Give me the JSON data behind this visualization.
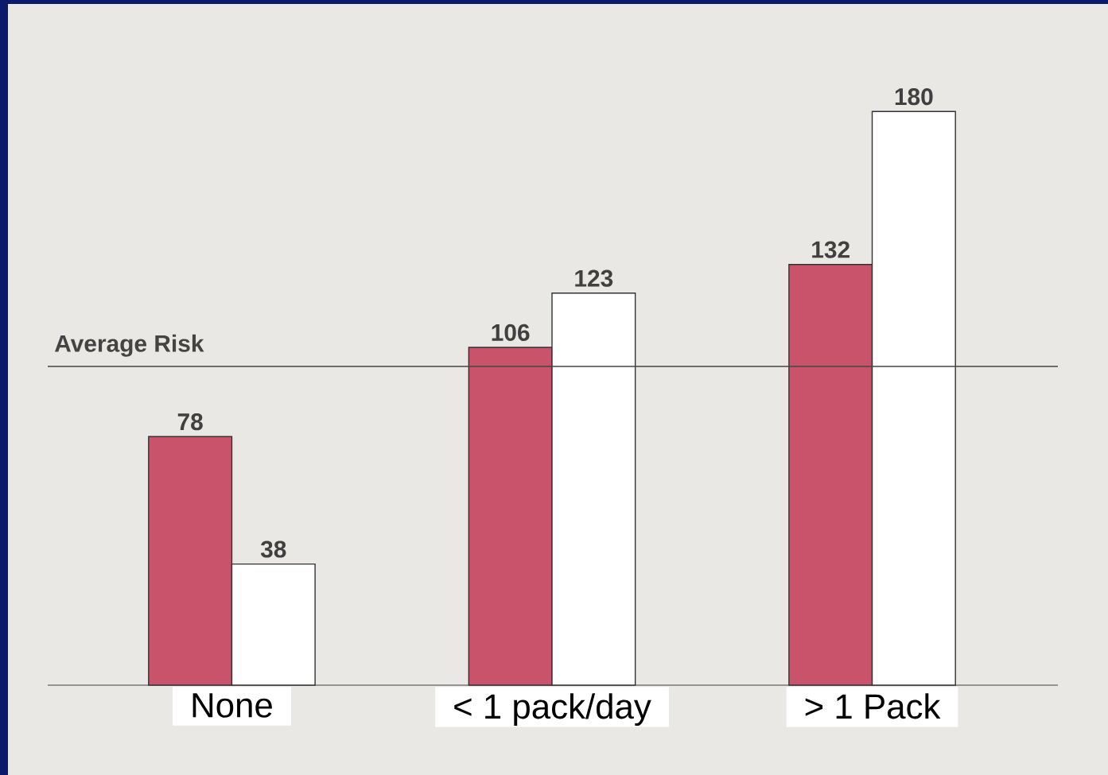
{
  "chart_data": {
    "type": "bar",
    "categories": [
      "None",
      "< 1 pack/day",
      "> 1 Pack"
    ],
    "series": [
      {
        "color": "#c9536a",
        "values": [
          78,
          106,
          132
        ]
      },
      {
        "color": "#ffffff",
        "values": [
          38,
          123,
          180
        ]
      }
    ],
    "data_labels": true,
    "tick_labels": "x",
    "ref_lines": [
      {
        "axis": "y",
        "value": 100,
        "label": "Average Risk",
        "color": "#444444"
      }
    ]
  }
}
